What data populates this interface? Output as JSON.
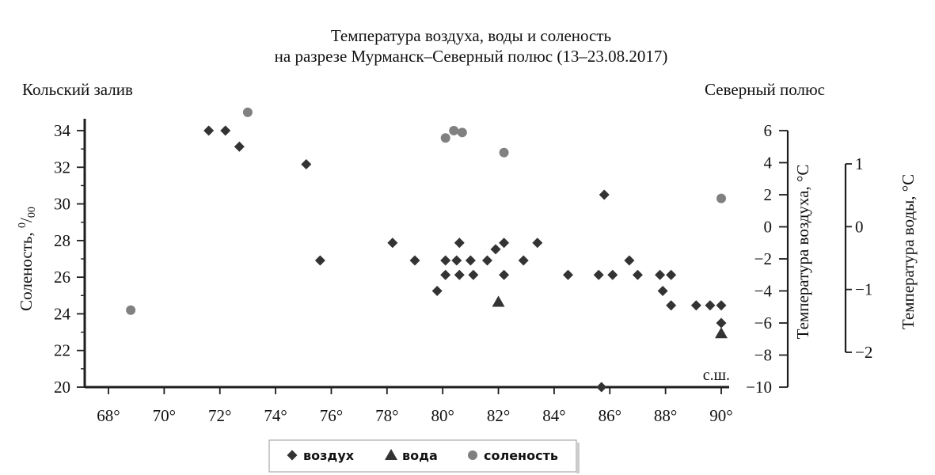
{
  "chart_data": {
    "type": "scatter",
    "title": "Температура воздуха, воды и соленость",
    "subtitle": "на разрезе Мурманск–Северный полюс (13–23.08.2017)",
    "left_corner_label": "Кольский залив",
    "right_corner_label": "Северный полюс",
    "x_unit_label": "с.ш.",
    "x_ticks": [
      "68°",
      "70°",
      "72°",
      "74°",
      "76°",
      "78°",
      "80°",
      "82°",
      "84°",
      "86°",
      "88°",
      "90°"
    ],
    "x_tick_values": [
      68,
      70,
      72,
      74,
      76,
      78,
      80,
      82,
      84,
      86,
      88,
      90
    ],
    "xlim": [
      67.5,
      90.3
    ],
    "axes": {
      "salinity": {
        "label": "Соленость, ‰",
        "label_main": "Соленость,",
        "label_sup": "0",
        "label_sub": "00",
        "lim": [
          20,
          35
        ],
        "ticks": [
          "20",
          "22",
          "24",
          "26",
          "28",
          "30",
          "32",
          "34"
        ],
        "tick_values": [
          20,
          22,
          24,
          26,
          28,
          30,
          32,
          34
        ],
        "side": "left"
      },
      "air": {
        "label": "Температура воздуха, °С",
        "lim": [
          -10,
          6
        ],
        "ticks": [
          "−10",
          "−8",
          "−6",
          "−4",
          "−2",
          "0",
          "2",
          "4",
          "6"
        ],
        "tick_values": [
          -10,
          -8,
          -6,
          -4,
          -2,
          0,
          2,
          4,
          6
        ],
        "side": "right-inner"
      },
      "water": {
        "label": "Температура воды, °С",
        "lim": [
          -2,
          1
        ],
        "ticks": [
          "−2",
          "−1",
          "0",
          "1"
        ],
        "tick_values": [
          -2,
          -1,
          0,
          1
        ],
        "side": "right-outer"
      }
    },
    "series": [
      {
        "name": "воздух",
        "marker": "diamond",
        "axis": "air",
        "color": "#333333",
        "points": [
          {
            "x": 71.6,
            "y": 6.0
          },
          {
            "x": 72.2,
            "y": 6.0
          },
          {
            "x": 72.7,
            "y": 5.0
          },
          {
            "x": 75.1,
            "y": 3.9
          },
          {
            "x": 75.6,
            "y": -2.1
          },
          {
            "x": 78.2,
            "y": -1.0
          },
          {
            "x": 79.0,
            "y": -2.1
          },
          {
            "x": 79.8,
            "y": -4.0
          },
          {
            "x": 80.1,
            "y": -2.1
          },
          {
            "x": 80.1,
            "y": -3.0
          },
          {
            "x": 80.5,
            "y": -2.1
          },
          {
            "x": 80.6,
            "y": -1.0
          },
          {
            "x": 80.6,
            "y": -3.0
          },
          {
            "x": 81.0,
            "y": -2.1
          },
          {
            "x": 81.1,
            "y": -3.0
          },
          {
            "x": 81.6,
            "y": -2.1
          },
          {
            "x": 81.9,
            "y": -1.4
          },
          {
            "x": 82.2,
            "y": -1.0
          },
          {
            "x": 82.2,
            "y": -3.0
          },
          {
            "x": 82.9,
            "y": -2.1
          },
          {
            "x": 83.4,
            "y": -1.0
          },
          {
            "x": 84.5,
            "y": -3.0
          },
          {
            "x": 85.6,
            "y": -3.0
          },
          {
            "x": 85.8,
            "y": 2.0
          },
          {
            "x": 86.1,
            "y": -3.0
          },
          {
            "x": 85.7,
            "y": -10.0
          },
          {
            "x": 86.7,
            "y": -2.1
          },
          {
            "x": 87.0,
            "y": -3.0
          },
          {
            "x": 87.8,
            "y": -3.0
          },
          {
            "x": 87.9,
            "y": -4.0
          },
          {
            "x": 88.2,
            "y": -3.0
          },
          {
            "x": 88.2,
            "y": -4.9
          },
          {
            "x": 89.1,
            "y": -4.9
          },
          {
            "x": 89.6,
            "y": -4.9
          },
          {
            "x": 90.0,
            "y": -4.9
          },
          {
            "x": 90.0,
            "y": -6.0
          }
        ]
      },
      {
        "name": "вода",
        "marker": "triangle",
        "axis": "water",
        "color": "#333333",
        "points": [
          {
            "x": 82.0,
            "y": -1.2
          },
          {
            "x": 90.0,
            "y": -1.7
          }
        ]
      },
      {
        "name": "соленость",
        "marker": "circle",
        "axis": "salinity",
        "color": "#808080",
        "points": [
          {
            "x": 68.8,
            "y": 24.2
          },
          {
            "x": 73.0,
            "y": 35.0
          },
          {
            "x": 80.1,
            "y": 33.6
          },
          {
            "x": 80.4,
            "y": 34.0
          },
          {
            "x": 80.7,
            "y": 33.9
          },
          {
            "x": 82.2,
            "y": 32.8
          },
          {
            "x": 90.0,
            "y": 30.3
          }
        ]
      }
    ],
    "legend": {
      "placement": "bottom-center",
      "items": [
        "воздух",
        "вода",
        "соленость"
      ]
    },
    "grid": false
  }
}
